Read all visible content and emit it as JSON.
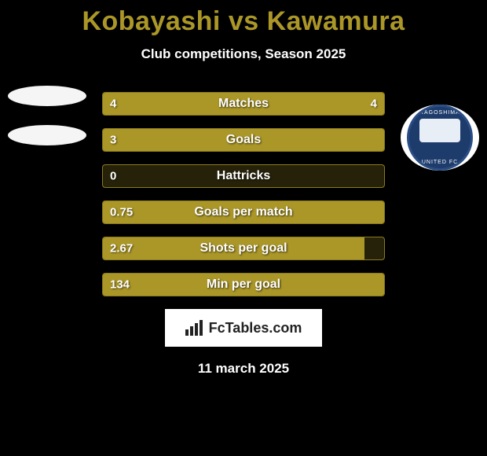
{
  "title": "Kobayashi vs Kawamura",
  "title_color": "#ab9728",
  "subtitle": "Club competitions, Season 2025",
  "date": "11 march 2025",
  "left_ellipse_color": "#f5f5f5",
  "right_ellipse_color": "#f5f5f5",
  "badge_top_text": "KAGOSHIMA",
  "badge_bottom_text": "UNITED FC",
  "bar_colors": {
    "left_bg": "#ab9728",
    "empty_bg": "#262209",
    "border": "#8a7a1f"
  },
  "stats": [
    {
      "label": "Matches",
      "left_val": "4",
      "right_val": "4",
      "left_pct": 50,
      "right_pct": 50
    },
    {
      "label": "Goals",
      "left_val": "3",
      "right_val": "",
      "left_pct": 100,
      "right_pct": 0
    },
    {
      "label": "Hattricks",
      "left_val": "0",
      "right_val": "",
      "left_pct": 0,
      "right_pct": 0
    },
    {
      "label": "Goals per match",
      "left_val": "0.75",
      "right_val": "",
      "left_pct": 100,
      "right_pct": 0
    },
    {
      "label": "Shots per goal",
      "left_val": "2.67",
      "right_val": "",
      "left_pct": 93,
      "right_pct": 0
    },
    {
      "label": "Min per goal",
      "left_val": "134",
      "right_val": "",
      "left_pct": 100,
      "right_pct": 0
    }
  ],
  "brand": "FcTables.com"
}
